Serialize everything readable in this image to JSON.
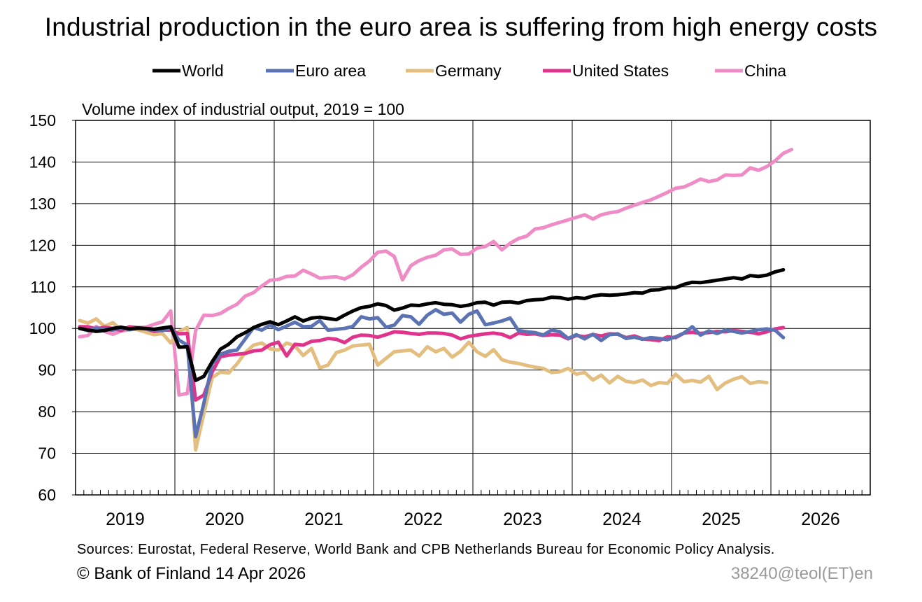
{
  "title": "Industrial production in the euro area is suffering from high energy costs",
  "footer": {
    "sources": "Sources: Eurostat, Federal Reserve, World Bank and CPB Netherlands Bureau for Economic Policy Analysis.",
    "copyright": "© Bank of Finland 14 Apr 2026",
    "code": "38240@teol(ET)en"
  },
  "chart_data": {
    "type": "line",
    "title": "Industrial production in the euro area is suffering from high energy costs",
    "subtitle": "Volume index of industrial output, 2019 = 100",
    "xlabel": "",
    "ylabel": "",
    "ylim": [
      60,
      150
    ],
    "yticks": [
      60,
      70,
      80,
      90,
      100,
      110,
      120,
      130,
      140,
      150
    ],
    "xlim": [
      "2019-01",
      "2027-01"
    ],
    "xticks": [
      "2019",
      "2020",
      "2021",
      "2022",
      "2023",
      "2024",
      "2025",
      "2026"
    ],
    "grid": true,
    "legend_position": "top",
    "x_start": "2019-01",
    "series": [
      {
        "name": "World",
        "color": "#000000",
        "values": [
          100.0,
          99.6,
          99.3,
          99.5,
          100.0,
          100.3,
          99.9,
          100.1,
          100.0,
          99.8,
          100.1,
          100.4,
          95.5,
          95.6,
          87.5,
          88.5,
          92.0,
          95.0,
          96.2,
          98.0,
          99.0,
          100.2,
          101.0,
          101.6,
          100.9,
          101.8,
          102.8,
          101.8,
          102.5,
          102.7,
          102.4,
          102.1,
          103.2,
          104.2,
          105.0,
          105.3,
          105.9,
          105.5,
          104.4,
          104.9,
          105.6,
          105.5,
          105.9,
          106.2,
          105.8,
          105.7,
          105.3,
          105.6,
          106.2,
          106.3,
          105.6,
          106.3,
          106.4,
          106.1,
          106.7,
          106.9,
          107.0,
          107.5,
          107.4,
          107.0,
          107.4,
          107.2,
          107.8,
          108.1,
          108.0,
          108.1,
          108.3,
          108.6,
          108.5,
          109.2,
          109.3,
          109.8,
          109.8,
          110.6,
          111.1,
          111.0,
          111.3,
          111.6,
          111.9,
          112.2,
          111.9,
          112.7,
          112.5,
          112.8,
          113.6,
          114.1
        ]
      },
      {
        "name": "Euro area",
        "color": "#5b73b2",
        "values": [
          100.0,
          99.5,
          100.1,
          99.8,
          99.6,
          100.2,
          99.7,
          100.0,
          99.9,
          99.6,
          99.5,
          100.2,
          97.2,
          96.0,
          74.0,
          82.0,
          91.5,
          93.8,
          94.5,
          94.8,
          97.5,
          100.2,
          99.6,
          100.8,
          99.7,
          100.6,
          101.5,
          100.4,
          100.5,
          101.9,
          99.6,
          99.8,
          100.0,
          100.5,
          102.8,
          102.3,
          102.6,
          100.3,
          100.8,
          103.1,
          102.8,
          101.0,
          103.2,
          104.5,
          103.4,
          103.7,
          101.5,
          103.4,
          104.2,
          100.9,
          101.3,
          101.8,
          102.5,
          99.5,
          99.2,
          99.0,
          98.4,
          99.6,
          99.2,
          97.6,
          98.5,
          97.5,
          98.6,
          97.1,
          98.5,
          98.7,
          97.6,
          97.9,
          97.4,
          97.8,
          97.6,
          97.3,
          98.0,
          98.9,
          100.4,
          98.4,
          99.4,
          98.8,
          99.6,
          99.3,
          98.9,
          99.3,
          99.7,
          99.9,
          99.6,
          97.8
        ]
      },
      {
        "name": "Germany",
        "color": "#e3be7f",
        "values": [
          101.9,
          101.3,
          102.3,
          100.5,
          101.4,
          99.6,
          100.0,
          99.7,
          99.1,
          98.5,
          98.8,
          96.5,
          99.3,
          100.2,
          70.8,
          79.5,
          88.2,
          89.5,
          89.3,
          91.5,
          94.2,
          96.0,
          96.5,
          95.1,
          94.8,
          96.5,
          95.8,
          93.5,
          95.2,
          90.5,
          91.2,
          94.2,
          94.8,
          95.8,
          96.0,
          96.2,
          91.2,
          92.8,
          94.4,
          94.6,
          94.8,
          93.4,
          95.6,
          94.4,
          95.2,
          93.1,
          94.5,
          96.7,
          94.4,
          93.3,
          94.9,
          92.5,
          91.9,
          91.6,
          91.1,
          90.7,
          90.4,
          89.4,
          89.6,
          90.4,
          89.0,
          89.4,
          87.6,
          88.8,
          86.9,
          88.5,
          87.3,
          87.0,
          87.6,
          86.3,
          87.0,
          86.8,
          89.0,
          87.2,
          87.5,
          87.1,
          88.5,
          85.3,
          86.9,
          87.8,
          88.4,
          86.8,
          87.2,
          87.0
        ]
      },
      {
        "name": "United States",
        "color": "#e0348c",
        "values": [
          100.4,
          100.4,
          99.9,
          100.3,
          100.0,
          99.5,
          100.4,
          100.2,
          99.9,
          99.3,
          99.6,
          99.6,
          98.7,
          98.8,
          82.8,
          84.0,
          89.5,
          93.2,
          93.6,
          93.8,
          94.0,
          94.6,
          94.8,
          96.1,
          96.7,
          93.4,
          96.2,
          96.0,
          96.9,
          97.1,
          97.6,
          97.4,
          96.6,
          97.9,
          98.4,
          98.3,
          97.9,
          98.5,
          99.2,
          99.1,
          98.8,
          98.6,
          98.9,
          98.9,
          98.8,
          98.4,
          97.5,
          98.1,
          98.4,
          98.7,
          98.9,
          98.6,
          97.8,
          98.9,
          98.6,
          98.7,
          98.3,
          98.5,
          98.4,
          97.5,
          98.3,
          98.0,
          98.5,
          98.2,
          98.7,
          98.6,
          97.8,
          98.2,
          97.5,
          97.3,
          97.1,
          98.0,
          97.8,
          98.9,
          99.1,
          98.8,
          99.0,
          99.3,
          99.2,
          99.5,
          99.3,
          99.1,
          98.7,
          99.2,
          99.9,
          100.2
        ]
      },
      {
        "name": "China",
        "color": "#ef8cc6",
        "values": [
          98.0,
          98.3,
          100.5,
          99.3,
          98.6,
          99.4,
          99.7,
          100.2,
          100.3,
          101.0,
          101.6,
          104.2,
          84.0,
          84.4,
          99.5,
          103.2,
          103.1,
          103.6,
          104.8,
          105.8,
          107.8,
          108.6,
          110.2,
          111.6,
          111.8,
          112.5,
          112.6,
          114.0,
          113.1,
          112.1,
          112.3,
          112.4,
          111.9,
          112.9,
          114.7,
          116.2,
          118.3,
          118.6,
          117.3,
          111.7,
          115.1,
          116.3,
          117.1,
          117.6,
          118.9,
          119.1,
          117.8,
          117.9,
          119.3,
          119.7,
          120.9,
          118.9,
          120.5,
          121.6,
          122.2,
          123.9,
          124.2,
          124.9,
          125.5,
          126.1,
          126.7,
          127.3,
          126.3,
          127.3,
          127.8,
          128.1,
          128.9,
          129.6,
          130.3,
          130.9,
          131.8,
          132.7,
          133.7,
          134.0,
          134.9,
          135.9,
          135.3,
          135.7,
          136.9,
          136.8,
          136.9,
          138.6,
          138.0,
          138.9,
          140.3,
          142.1,
          143.0
        ]
      }
    ]
  }
}
